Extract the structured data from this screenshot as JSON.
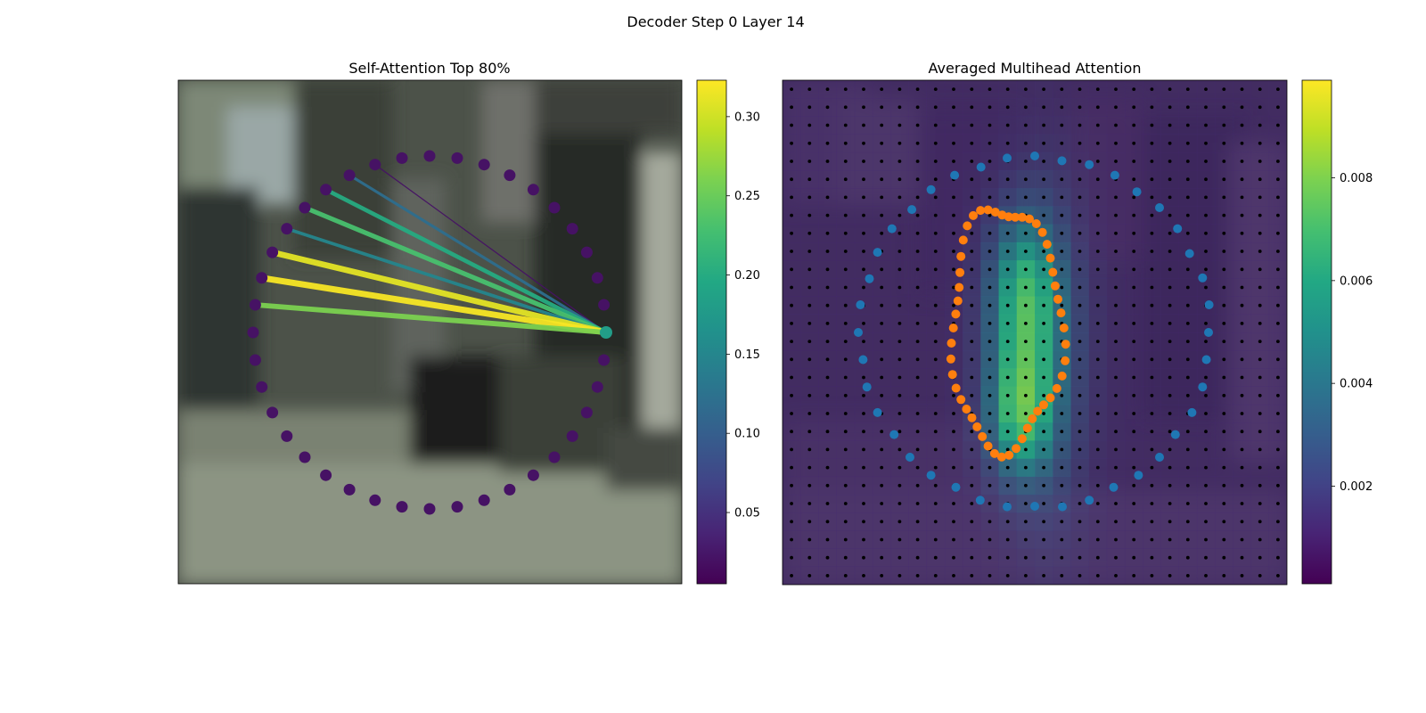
{
  "figure": {
    "title": "Decoder Step 0 Layer 14"
  },
  "chart_data": [
    {
      "type": "scatter",
      "title": "Self-Attention Top 80%",
      "description": "Ring of 40 contour points over a blurred street image; lines from the query point (right-most) to attended points, colored by weight.",
      "query_index": 0,
      "point_weights": [
        0.18,
        0.02,
        0.02,
        0.02,
        0.02,
        0.02,
        0.02,
        0.02,
        0.02,
        0.02,
        0.02,
        0.02,
        0.02,
        0.02,
        0.02,
        0.02,
        0.02,
        0.02,
        0.02,
        0.02,
        0.02,
        0.02,
        0.02,
        0.02,
        0.02,
        0.02,
        0.02,
        0.02,
        0.02,
        0.02,
        0.02,
        0.02,
        0.02,
        0.02,
        0.02,
        0.02,
        0.02,
        0.02,
        0.02,
        0.02
      ],
      "attention_lines": [
        {
          "to": 12,
          "weight": 0.02
        },
        {
          "to": 13,
          "weight": 0.12
        },
        {
          "to": 14,
          "weight": 0.2
        },
        {
          "to": 15,
          "weight": 0.23
        },
        {
          "to": 16,
          "weight": 0.15
        },
        {
          "to": 17,
          "weight": 0.31
        },
        {
          "to": 18,
          "weight": 0.32
        },
        {
          "to": 19,
          "weight": 0.26
        }
      ],
      "colorbar": {
        "min": 0.005,
        "max": 0.323,
        "ticks": [
          0.05,
          0.1,
          0.15,
          0.2,
          0.25,
          0.3
        ],
        "tick_labels": [
          "0.05",
          "0.10",
          "0.15",
          "0.20",
          "0.25",
          "0.30"
        ],
        "colormap": "viridis"
      }
    },
    {
      "type": "heatmap",
      "title": "Averaged Multihead Attention",
      "description": "28x28 attention grid (averaged over heads) overlaid on the image with grid-point markers, a blue outer contour and an orange inner contour.",
      "grid_size": 28,
      "peak_centers": [
        {
          "row": 11.5,
          "col": 12.8,
          "sigma_r": 3.2,
          "sigma_c": 1.4,
          "value": 0.0088
        },
        {
          "row": 18.0,
          "col": 12.6,
          "sigma_r": 2.6,
          "sigma_c": 1.3,
          "value": 0.0092
        },
        {
          "row": 15.0,
          "col": 14.2,
          "sigma_r": 6.5,
          "sigma_c": 1.6,
          "value": 0.0045
        }
      ],
      "background_value": 0.0012,
      "series": [
        {
          "name": "",
          "color": "#1f77b4",
          "points": 40
        },
        {
          "name": "",
          "color": "#ff7f0e",
          "points": 50
        }
      ],
      "colorbar": {
        "min": 0.0001,
        "max": 0.0099,
        "ticks": [
          0.002,
          0.004,
          0.006,
          0.008
        ],
        "tick_labels": [
          "0.002",
          "0.004",
          "0.006",
          "0.008"
        ],
        "colormap": "viridis"
      }
    }
  ],
  "colors": {
    "blue_contour": "#1f77b4",
    "orange_contour": "#ff7f0e",
    "grid_marker": "#000000"
  }
}
